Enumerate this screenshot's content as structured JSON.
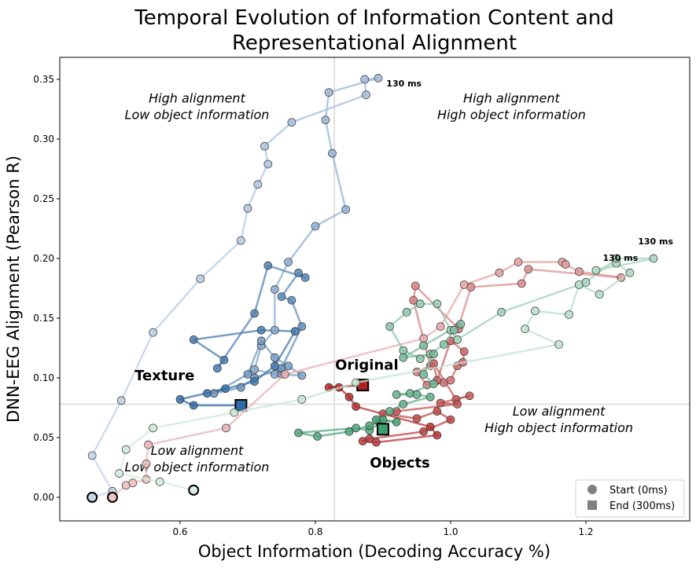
{
  "chart_data": {
    "type": "scatter",
    "title": "Temporal Evolution of Information Content and Representational Alignment",
    "title_lines": [
      "Temporal Evolution of Information Content and",
      "Representational Alignment"
    ],
    "xlabel": "Object Information (Decoding Accuracy %)",
    "ylabel": "DNN-EEG Alignment (Pearson R)",
    "xlim": [
      0.42,
      1.35
    ],
    "ylim": [
      -0.02,
      0.37
    ],
    "xticks": [
      0.6,
      0.8,
      1.0,
      1.2
    ],
    "xtick_labels": [
      "0.6",
      "0.8",
      "1.0",
      "1.2"
    ],
    "yticks": [
      0.0,
      0.05,
      0.1,
      0.15,
      0.2,
      0.25,
      0.3,
      0.35
    ],
    "ytick_labels": [
      "0.00",
      "0.05",
      "0.10",
      "0.15",
      "0.20",
      "0.25",
      "0.30",
      "0.35"
    ],
    "reference_lines": {
      "x": 0.828,
      "y": 0.078
    },
    "quadrant_labels": [
      {
        "lines": [
          "High alignment",
          "Low object information"
        ],
        "x": 0.625,
        "y": 0.32
      },
      {
        "lines": [
          "High alignment",
          "High object information"
        ],
        "x": 1.09,
        "y": 0.32
      },
      {
        "lines": [
          "Low alignment",
          "Low object information"
        ],
        "x": 0.625,
        "y": 0.025
      },
      {
        "lines": [
          "Low alignment",
          "High object information"
        ],
        "x": 1.16,
        "y": 0.058
      }
    ],
    "series": [
      {
        "name": "Texture",
        "color_light": "#c6d6ea",
        "color_dark": "#2f6aa6",
        "label": {
          "text": "Texture",
          "x": 0.577,
          "y": 0.098
        },
        "peak_label": {
          "text": "130 ms",
          "x": 0.905,
          "y": 0.344
        },
        "points": [
          [
            0.47,
            0.0
          ],
          [
            0.5,
            0.005
          ],
          [
            0.47,
            0.035
          ],
          [
            0.513,
            0.081
          ],
          [
            0.56,
            0.138
          ],
          [
            0.63,
            0.183
          ],
          [
            0.69,
            0.215
          ],
          [
            0.7,
            0.242
          ],
          [
            0.715,
            0.262
          ],
          [
            0.73,
            0.279
          ],
          [
            0.725,
            0.294
          ],
          [
            0.765,
            0.314
          ],
          [
            0.875,
            0.337
          ],
          [
            0.873,
            0.35
          ],
          [
            0.893,
            0.351
          ],
          [
            0.82,
            0.339
          ],
          [
            0.815,
            0.316
          ],
          [
            0.825,
            0.288
          ],
          [
            0.845,
            0.241
          ],
          [
            0.8,
            0.227
          ],
          [
            0.76,
            0.197
          ],
          [
            0.74,
            0.174
          ],
          [
            0.74,
            0.14
          ],
          [
            0.72,
            0.127
          ],
          [
            0.71,
            0.107
          ],
          [
            0.74,
            0.103
          ],
          [
            0.75,
            0.103
          ],
          [
            0.78,
            0.102
          ],
          [
            0.76,
            0.11
          ],
          [
            0.74,
            0.117
          ],
          [
            0.72,
            0.131
          ],
          [
            0.7,
            0.103
          ],
          [
            0.65,
            0.087
          ],
          [
            0.69,
            0.092
          ],
          [
            0.71,
            0.1
          ],
          [
            0.75,
            0.108
          ],
          [
            0.78,
            0.143
          ],
          [
            0.765,
            0.165
          ],
          [
            0.75,
            0.168
          ],
          [
            0.775,
            0.188
          ],
          [
            0.785,
            0.184
          ],
          [
            0.73,
            0.194
          ],
          [
            0.71,
            0.154
          ],
          [
            0.655,
            0.108
          ],
          [
            0.665,
            0.115
          ],
          [
            0.62,
            0.132
          ],
          [
            0.72,
            0.14
          ],
          [
            0.77,
            0.139
          ],
          [
            0.74,
            0.11
          ],
          [
            0.71,
            0.097
          ],
          [
            0.64,
            0.087
          ],
          [
            0.667,
            0.091
          ],
          [
            0.6,
            0.082
          ],
          [
            0.62,
            0.077
          ],
          [
            0.69,
            0.077
          ]
        ]
      },
      {
        "name": "Original",
        "color_light": "#f0c4c4",
        "color_dark": "#b22222",
        "label": {
          "text": "Original",
          "x": 0.876,
          "y": 0.107
        },
        "peak_label": {
          "text": "130 ms",
          "x": 1.225,
          "y": 0.198
        },
        "points": [
          [
            0.5,
            0.0
          ],
          [
            0.52,
            0.01
          ],
          [
            0.53,
            0.012
          ],
          [
            0.55,
            0.015
          ],
          [
            0.55,
            0.028
          ],
          [
            0.553,
            0.044
          ],
          [
            0.668,
            0.058
          ],
          [
            0.755,
            0.103
          ],
          [
            0.96,
            0.133
          ],
          [
            0.985,
            0.143
          ],
          [
            1.02,
            0.178
          ],
          [
            1.072,
            0.188
          ],
          [
            1.1,
            0.197
          ],
          [
            1.165,
            0.197
          ],
          [
            1.17,
            0.195
          ],
          [
            1.19,
            0.189
          ],
          [
            1.252,
            0.184
          ],
          [
            1.115,
            0.191
          ],
          [
            1.105,
            0.179
          ],
          [
            1.03,
            0.176
          ],
          [
            1.012,
            0.143
          ],
          [
            1.012,
            0.141
          ],
          [
            0.948,
            0.177
          ],
          [
            0.945,
            0.165
          ],
          [
            0.97,
            0.11
          ],
          [
            0.95,
            0.105
          ],
          [
            0.965,
            0.094
          ],
          [
            0.99,
            0.096
          ],
          [
            1.0,
            0.098
          ],
          [
            1.01,
            0.11
          ],
          [
            1.018,
            0.113
          ],
          [
            1.02,
            0.122
          ],
          [
            1.0,
            0.131
          ],
          [
            0.98,
            0.098
          ],
          [
            0.975,
            0.112
          ],
          [
            1.008,
            0.082
          ],
          [
            1.028,
            0.085
          ],
          [
            0.985,
            0.079
          ],
          [
            1.01,
            0.078
          ],
          [
            0.92,
            0.072
          ],
          [
            0.9,
            0.07
          ],
          [
            0.95,
            0.066
          ],
          [
            0.98,
            0.072
          ],
          [
            1.0,
            0.065
          ],
          [
            0.96,
            0.055
          ],
          [
            0.88,
            0.049
          ],
          [
            0.87,
            0.047
          ],
          [
            0.89,
            0.046
          ],
          [
            0.98,
            0.052
          ],
          [
            0.97,
            0.059
          ],
          [
            0.86,
            0.076
          ],
          [
            0.85,
            0.084
          ],
          [
            0.835,
            0.092
          ],
          [
            0.82,
            0.092
          ],
          [
            0.87,
            0.094
          ]
        ]
      },
      {
        "name": "Objects",
        "color_light": "#d8eee2",
        "color_dark": "#3f9e6e",
        "label": {
          "text": "Objects",
          "x": 0.925,
          "y": 0.025
        },
        "peak_label": {
          "text": "130 ms",
          "x": 1.277,
          "y": 0.212
        },
        "points": [
          [
            0.62,
            0.006
          ],
          [
            0.57,
            0.013
          ],
          [
            0.51,
            0.02
          ],
          [
            0.52,
            0.04
          ],
          [
            0.56,
            0.058
          ],
          [
            0.68,
            0.071
          ],
          [
            0.78,
            0.082
          ],
          [
            0.86,
            0.096
          ],
          [
            1.16,
            0.128
          ],
          [
            1.11,
            0.141
          ],
          [
            1.125,
            0.156
          ],
          [
            1.175,
            0.153
          ],
          [
            1.19,
            0.178
          ],
          [
            1.22,
            0.17
          ],
          [
            1.265,
            0.188
          ],
          [
            1.245,
            0.196
          ],
          [
            1.215,
            0.19
          ],
          [
            1.3,
            0.2
          ],
          [
            1.245,
            0.2
          ],
          [
            1.2,
            0.18
          ],
          [
            1.075,
            0.155
          ],
          [
            1.01,
            0.132
          ],
          [
            1.0,
            0.14
          ],
          [
            0.98,
            0.162
          ],
          [
            0.955,
            0.162
          ],
          [
            0.935,
            0.155
          ],
          [
            0.91,
            0.143
          ],
          [
            0.93,
            0.123
          ],
          [
            0.955,
            0.116
          ],
          [
            0.97,
            0.12
          ],
          [
            0.99,
            0.128
          ],
          [
            1.005,
            0.14
          ],
          [
            1.015,
            0.145
          ],
          [
            0.96,
            0.127
          ],
          [
            0.93,
            0.117
          ],
          [
            0.975,
            0.12
          ],
          [
            0.96,
            0.103
          ],
          [
            0.975,
            0.095
          ],
          [
            0.94,
            0.087
          ],
          [
            0.92,
            0.086
          ],
          [
            0.95,
            0.086
          ],
          [
            0.97,
            0.084
          ],
          [
            0.93,
            0.078
          ],
          [
            0.91,
            0.072
          ],
          [
            0.895,
            0.062
          ],
          [
            0.88,
            0.056
          ],
          [
            0.86,
            0.058
          ],
          [
            0.775,
            0.054
          ],
          [
            0.803,
            0.051
          ],
          [
            0.85,
            0.055
          ],
          [
            0.88,
            0.06
          ],
          [
            0.9,
            0.065
          ],
          [
            0.92,
            0.063
          ],
          [
            0.89,
            0.065
          ],
          [
            0.9,
            0.057
          ]
        ]
      }
    ],
    "legend": {
      "position": "lower-right",
      "items": [
        {
          "label": "Start (0ms)",
          "marker": "circle",
          "color": "#808080"
        },
        {
          "label": "End (300ms)",
          "marker": "square",
          "color": "#808080"
        }
      ]
    }
  }
}
